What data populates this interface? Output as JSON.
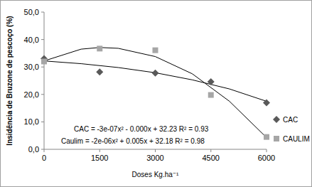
{
  "chart_data": {
    "type": "scatter",
    "x_label": "Doses Kg.ha⁻¹",
    "y_label": "Insidência de Bruzone de pescoço (%)",
    "xlim": [
      0,
      6000
    ],
    "ylim": [
      0,
      50
    ],
    "xticks": [
      0,
      1500,
      3000,
      4500,
      6000
    ],
    "yticks": [
      {
        "value": 0,
        "label": "0,0"
      },
      {
        "value": 10,
        "label": "10,0"
      },
      {
        "value": 20,
        "label": "20,0"
      },
      {
        "value": 30,
        "label": "30,0"
      },
      {
        "value": 40,
        "label": "40,0"
      },
      {
        "value": 50,
        "label": "50,0"
      }
    ],
    "grid": false,
    "legend": "right",
    "series": [
      {
        "name": "CAC",
        "type": "scatter",
        "marker": "diamond",
        "color": "#595959",
        "x": [
          0,
          1500,
          3000,
          4500,
          6000
        ],
        "values": [
          33.0,
          28.2,
          27.8,
          24.6,
          17.0
        ]
      },
      {
        "name": "CAULIM",
        "type": "scatter",
        "marker": "square",
        "color": "#a6a6a6",
        "x": [
          0,
          1500,
          3000,
          4500,
          6000
        ],
        "values": [
          32.0,
          36.7,
          36.1,
          19.8,
          4.5
        ]
      },
      {
        "type": "line",
        "line_style": "solid",
        "color": "#000000",
        "x": [
          0,
          1000,
          2000,
          3000,
          4000,
          5000,
          6000
        ],
        "values": [
          32.2,
          31.2,
          29.8,
          27.9,
          25.3,
          22.0,
          17.5
        ]
      },
      {
        "type": "line",
        "line_style": "solid",
        "color": "#000000",
        "x": [
          0,
          1000,
          1500,
          2000,
          3000,
          4000,
          5000,
          6000
        ],
        "values": [
          32.2,
          36.5,
          37.1,
          36.8,
          33.8,
          27.5,
          17.5,
          4.3
        ]
      }
    ],
    "annotations": [
      "CAC = -3e-07x² - 0.000x + 32.23  R² = 0.93",
      "Caulim = -2e-06x² + 0.005x + 32.18  R² = 0.98"
    ]
  }
}
